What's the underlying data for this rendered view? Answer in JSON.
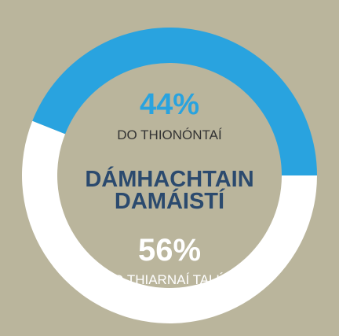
{
  "chart_data": {
    "type": "donut",
    "title": "DÁMHACHTAIN DAMÁISTÍ",
    "categories": [
      "DO THIONÓNTAÍ",
      "DO THIARNAÍ TALÚN"
    ],
    "values": [
      44,
      56
    ],
    "value_labels": [
      "44%",
      "56%"
    ],
    "colors": [
      "#29a3df",
      "#ffffff"
    ]
  }
}
